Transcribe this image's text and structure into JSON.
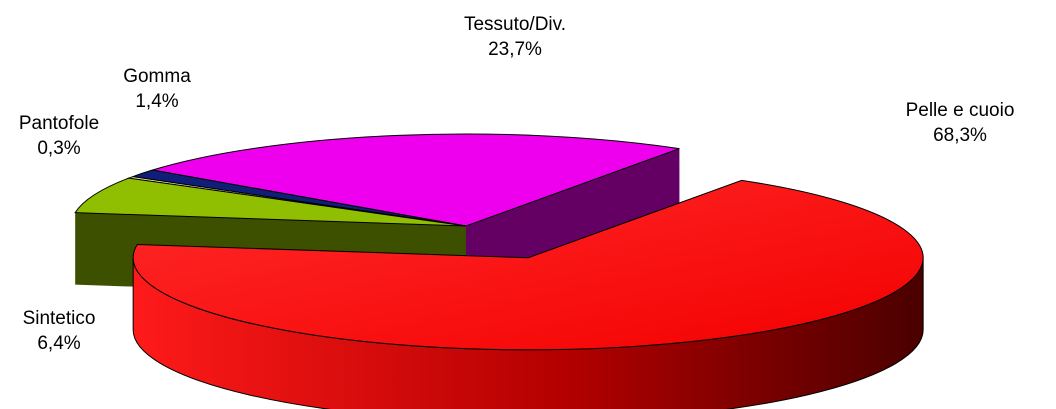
{
  "chart_data": {
    "type": "pie",
    "variant": "3d-exploded",
    "categories": [
      "Pelle e cuoio",
      "Sintetico",
      "Pantofole",
      "Gomma",
      "Tessuto/Div."
    ],
    "values": [
      68.3,
      6.4,
      0.3,
      1.4,
      23.7
    ],
    "value_labels": [
      "68,3%",
      "6,4%",
      "0,3%",
      "1,4%",
      "23,7%"
    ],
    "colors": [
      "#ff1010",
      "#8fbf00",
      "#f2f0a0",
      "#0f1e78",
      "#ee00ee"
    ],
    "legend": "none"
  }
}
